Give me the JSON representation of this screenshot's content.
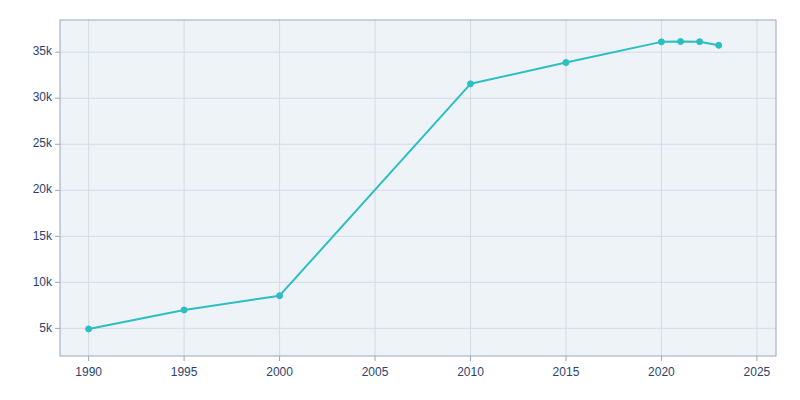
{
  "chart_data": {
    "type": "line",
    "x": [
      1990,
      1995,
      2000,
      2010,
      2015,
      2020,
      2021,
      2022,
      2023
    ],
    "values": [
      4939,
      7000,
      8550,
      31565,
      33877,
      36124,
      36161,
      36145,
      35749
    ],
    "color": "#2bbfc4",
    "marker": "circle",
    "line_style": "solid",
    "xlim": [
      1988.5,
      2026
    ],
    "ylim": [
      2000,
      38500
    ],
    "xticks": [
      1990,
      1995,
      2000,
      2005,
      2010,
      2015,
      2020,
      2025
    ],
    "yticks": [
      {
        "value": 5000,
        "label": "5k"
      },
      {
        "value": 10000,
        "label": "10k"
      },
      {
        "value": 15000,
        "label": "15k"
      },
      {
        "value": 20000,
        "label": "20k"
      },
      {
        "value": 25000,
        "label": "25k"
      },
      {
        "value": 30000,
        "label": "30k"
      },
      {
        "value": 35000,
        "label": "35k"
      }
    ],
    "grid": true
  }
}
